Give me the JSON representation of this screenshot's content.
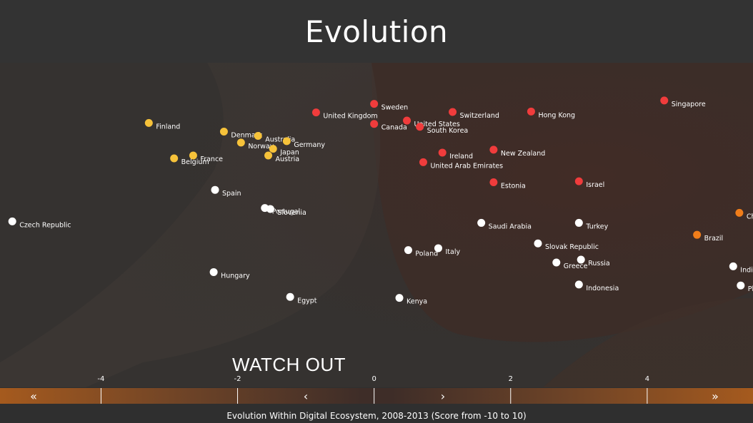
{
  "title": "Evolution",
  "section_label": "WATCH OUT",
  "nav": {
    "first": "«",
    "prev": "‹",
    "next": "›",
    "last": "»"
  },
  "colors": {
    "stand_out": "#f03c3c",
    "stall_out": "#f6c23a",
    "watch_out": "#ffffff",
    "break_out": "#f07d1a"
  },
  "chart_data": {
    "type": "scatter",
    "title": "Evolution",
    "xlabel": "Evolution Within Digital Ecosystem, 2008-2013 (Score from -10 to 10)",
    "ylabel": "",
    "xticks": [
      -4,
      -2,
      0,
      2,
      4
    ],
    "xlim": [
      -5.48,
      5.55
    ],
    "grid": false,
    "series": [
      {
        "color": "#f03c3c",
        "points": [
          {
            "label": "Sweden",
            "x": 0.0,
            "y": 6.0
          },
          {
            "label": "United Kingdom",
            "x": -0.85,
            "y": 5.1
          },
          {
            "label": "Switzerland",
            "x": 1.15,
            "y": 5.15
          },
          {
            "label": "United States",
            "x": 0.48,
            "y": 4.25
          },
          {
            "label": "Canada",
            "x": 0.0,
            "y": 3.9
          },
          {
            "label": "South Korea",
            "x": 0.67,
            "y": 3.6
          },
          {
            "label": "Hong Kong",
            "x": 2.3,
            "y": 5.2
          },
          {
            "label": "Singapore",
            "x": 4.25,
            "y": 6.35
          },
          {
            "label": "Ireland",
            "x": 1.0,
            "y": 0.9
          },
          {
            "label": "New Zealand",
            "x": 1.75,
            "y": 1.2
          },
          {
            "label": "United Arab Emirates",
            "x": 0.72,
            "y": -0.1
          },
          {
            "label": "Estonia",
            "x": 1.75,
            "y": -2.2
          },
          {
            "label": "Israel",
            "x": 3.0,
            "y": -2.1
          }
        ]
      },
      {
        "color": "#f6c23a",
        "points": [
          {
            "label": "Finland",
            "x": -3.3,
            "y": 4.0
          },
          {
            "label": "Denmark",
            "x": -2.2,
            "y": 3.1
          },
          {
            "label": "Australia",
            "x": -1.7,
            "y": 2.65
          },
          {
            "label": "Germany",
            "x": -1.28,
            "y": 2.1
          },
          {
            "label": "Norway",
            "x": -1.95,
            "y": 1.95
          },
          {
            "label": "Japan",
            "x": -1.48,
            "y": 1.3
          },
          {
            "label": "Austria",
            "x": -1.55,
            "y": 0.6
          },
          {
            "label": "France",
            "x": -2.65,
            "y": 0.6
          },
          {
            "label": "Belgium",
            "x": -2.93,
            "y": 0.3
          }
        ]
      },
      {
        "color": "#ffffff",
        "points": [
          {
            "label": "Spain",
            "x": -2.33,
            "y": -3.0
          },
          {
            "label": "Portugal",
            "x": -1.6,
            "y": -4.9
          },
          {
            "label": "Slovenia",
            "x": -1.52,
            "y": -5.0
          },
          {
            "label": "Czech Republic",
            "x": -5.3,
            "y": -6.3
          },
          {
            "label": "Saudi Arabia",
            "x": 1.57,
            "y": -6.45
          },
          {
            "label": "Turkey",
            "x": 3.0,
            "y": -6.45
          },
          {
            "label": "Slovak Republic",
            "x": 2.4,
            "y": -8.6
          },
          {
            "label": "Italy",
            "x": 0.94,
            "y": -9.1
          },
          {
            "label": "Poland",
            "x": 0.5,
            "y": -9.3
          },
          {
            "label": "Russia",
            "x": 3.03,
            "y": -10.3
          },
          {
            "label": "Greece",
            "x": 2.67,
            "y": -10.6
          },
          {
            "label": "Hungary",
            "x": -2.35,
            "y": -11.6
          },
          {
            "label": "Indonesia",
            "x": 3.0,
            "y": -12.9
          },
          {
            "label": "Egypt",
            "x": -1.23,
            "y": -14.2
          },
          {
            "label": "Kenya",
            "x": 0.37,
            "y": -14.3
          },
          {
            "label": "India",
            "x": 5.26,
            "y": -11.0
          },
          {
            "label": "Ph",
            "x": 5.37,
            "y": -13.0
          }
        ]
      },
      {
        "color": "#f07d1a",
        "points": [
          {
            "label": "Ch",
            "x": 5.35,
            "y": -5.4
          },
          {
            "label": "Brazil",
            "x": 4.73,
            "y": -7.7
          }
        ]
      }
    ]
  }
}
